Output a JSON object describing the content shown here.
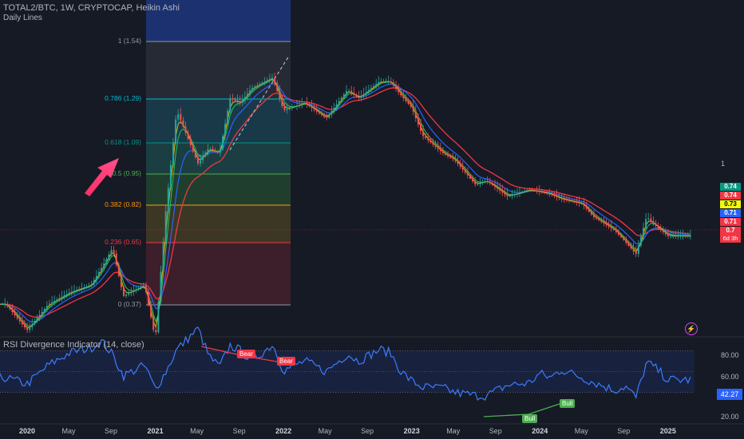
{
  "header": {
    "title": "TOTAL2/BTC, 1W, CRYPTOCAP, Heikin Ashi",
    "subtitle": "Daily Lines"
  },
  "colors": {
    "bg": "#161a25",
    "candle_up": "#26a69a",
    "candle_down": "#ef5350",
    "ma_green": "#22c55e",
    "ma_yellow": "#eab308",
    "ma_blue": "#2962ff",
    "ma_red": "#f23645",
    "rsi_line": "#3d7bff",
    "arrow": "#ff2e63"
  },
  "price_scale": {
    "label": "1"
  },
  "price_tags": [
    {
      "text": "0.74",
      "bg": "#089981",
      "fg": "#ffffff"
    },
    {
      "text": "0.74",
      "bg": "#f23645",
      "fg": "#ffffff"
    },
    {
      "text": "0.73",
      "bg": "#f5f90b",
      "fg": "#000000"
    },
    {
      "text": "0.71",
      "bg": "#2962ff",
      "fg": "#ffffff"
    },
    {
      "text": "0.71",
      "bg": "#f23645",
      "fg": "#ffffff"
    },
    {
      "text": "0.7",
      "bg": "#f23645",
      "fg": "#ffffff"
    }
  ],
  "price_countdown": "6d 3h",
  "fib_levels": [
    {
      "label": "1 (1.54)",
      "color": "#9598a1"
    },
    {
      "label": "0.786 (1.29)",
      "color": "#00bcd4"
    },
    {
      "label": "0.618 (1.09)",
      "color": "#009688"
    },
    {
      "label": "0.5 (0.95)",
      "color": "#4caf50"
    },
    {
      "label": "0.382 (0.82)",
      "color": "#ff9800"
    },
    {
      "label": "0.236 (0.65)",
      "color": "#f23645"
    },
    {
      "label": "0 (0.37)",
      "color": "#9598a1"
    }
  ],
  "rsi": {
    "title": "RSI Divergence Indicator (14, close)",
    "current_value": "42.27",
    "scale_labels": [
      "80.00",
      "60.00",
      "20.00"
    ],
    "divergences": [
      {
        "label": "Bear",
        "color": "#f23645"
      },
      {
        "label": "Bear",
        "color": "#f23645"
      },
      {
        "label": "Bull",
        "color": "#4caf50"
      },
      {
        "label": "Bull",
        "color": "#4caf50"
      }
    ]
  },
  "x_axis": [
    "2020",
    "May",
    "Sep",
    "2021",
    "May",
    "Sep",
    "2022",
    "May",
    "Sep",
    "2023",
    "May",
    "Sep",
    "2024",
    "May",
    "Sep",
    "2025"
  ],
  "chart_data": [
    {
      "type": "line",
      "title": "TOTAL2/BTC, 1W, CRYPTOCAP, Heikin Ashi",
      "x": [
        "2019-11",
        "2020-01",
        "2020-03",
        "2020-05",
        "2020-07",
        "2020-08",
        "2020-09",
        "2020-10",
        "2020-12",
        "2021-01",
        "2021-02",
        "2021-03",
        "2021-05",
        "2021-06",
        "2021-07",
        "2021-08",
        "2021-09",
        "2021-10",
        "2021-12",
        "2022-01",
        "2022-03",
        "2022-05",
        "2022-07",
        "2022-08",
        "2022-10",
        "2022-11",
        "2022-12",
        "2023-01",
        "2023-02",
        "2023-04",
        "2023-05",
        "2023-07",
        "2023-08",
        "2023-10",
        "2023-12",
        "2024-01",
        "2024-02",
        "2024-03",
        "2024-05",
        "2024-06",
        "2024-08",
        "2024-09",
        "2024-10",
        "2024-11",
        "2024-12",
        "2025-01"
      ],
      "series": [
        {
          "values": [
            0.5,
            0.44,
            0.5,
            0.53,
            0.55,
            0.6,
            0.66,
            0.52,
            0.55,
            0.42,
            0.8,
            1.3,
            1.0,
            1.08,
            1.05,
            1.38,
            1.35,
            1.45,
            1.53,
            1.3,
            1.35,
            1.25,
            1.44,
            1.38,
            1.5,
            1.5,
            1.4,
            1.32,
            1.15,
            1.05,
            1.02,
            0.9,
            0.92,
            0.85,
            0.88,
            0.87,
            0.86,
            0.84,
            0.82,
            0.77,
            0.72,
            0.68,
            0.64,
            0.77,
            0.73,
            0.7
          ]
        }
      ]
    },
    {
      "type": "line",
      "title": "RSI Divergence Indicator (14, close)",
      "ylim": [
        0,
        100
      ],
      "x": [
        "2019-11",
        "2020-01",
        "2020-03",
        "2020-05",
        "2020-07",
        "2020-08",
        "2020-09",
        "2020-10",
        "2020-12",
        "2021-01",
        "2021-02",
        "2021-03",
        "2021-05",
        "2021-06",
        "2021-07",
        "2021-08",
        "2021-09",
        "2021-10",
        "2021-12",
        "2022-01",
        "2022-03",
        "2022-05",
        "2022-07",
        "2022-08",
        "2022-10",
        "2022-11",
        "2022-12",
        "2023-01",
        "2023-02",
        "2023-04",
        "2023-05",
        "2023-07",
        "2023-08",
        "2023-10",
        "2023-12",
        "2024-01",
        "2024-02",
        "2024-03",
        "2024-05",
        "2024-06",
        "2024-08",
        "2024-09",
        "2024-10",
        "2024-11",
        "2024-12",
        "2025-01"
      ],
      "series": [
        {
          "values": [
            44,
            38,
            56,
            68,
            73,
            79,
            66,
            46,
            56,
            33,
            50,
            71,
            91,
            65,
            54,
            75,
            70,
            60,
            76,
            51,
            60,
            50,
            67,
            60,
            71,
            68,
            50,
            41,
            35,
            34,
            30,
            27,
            27,
            37,
            39,
            48,
            44,
            52,
            44,
            40,
            32,
            36,
            25,
            59,
            52,
            42
          ]
        }
      ]
    }
  ]
}
